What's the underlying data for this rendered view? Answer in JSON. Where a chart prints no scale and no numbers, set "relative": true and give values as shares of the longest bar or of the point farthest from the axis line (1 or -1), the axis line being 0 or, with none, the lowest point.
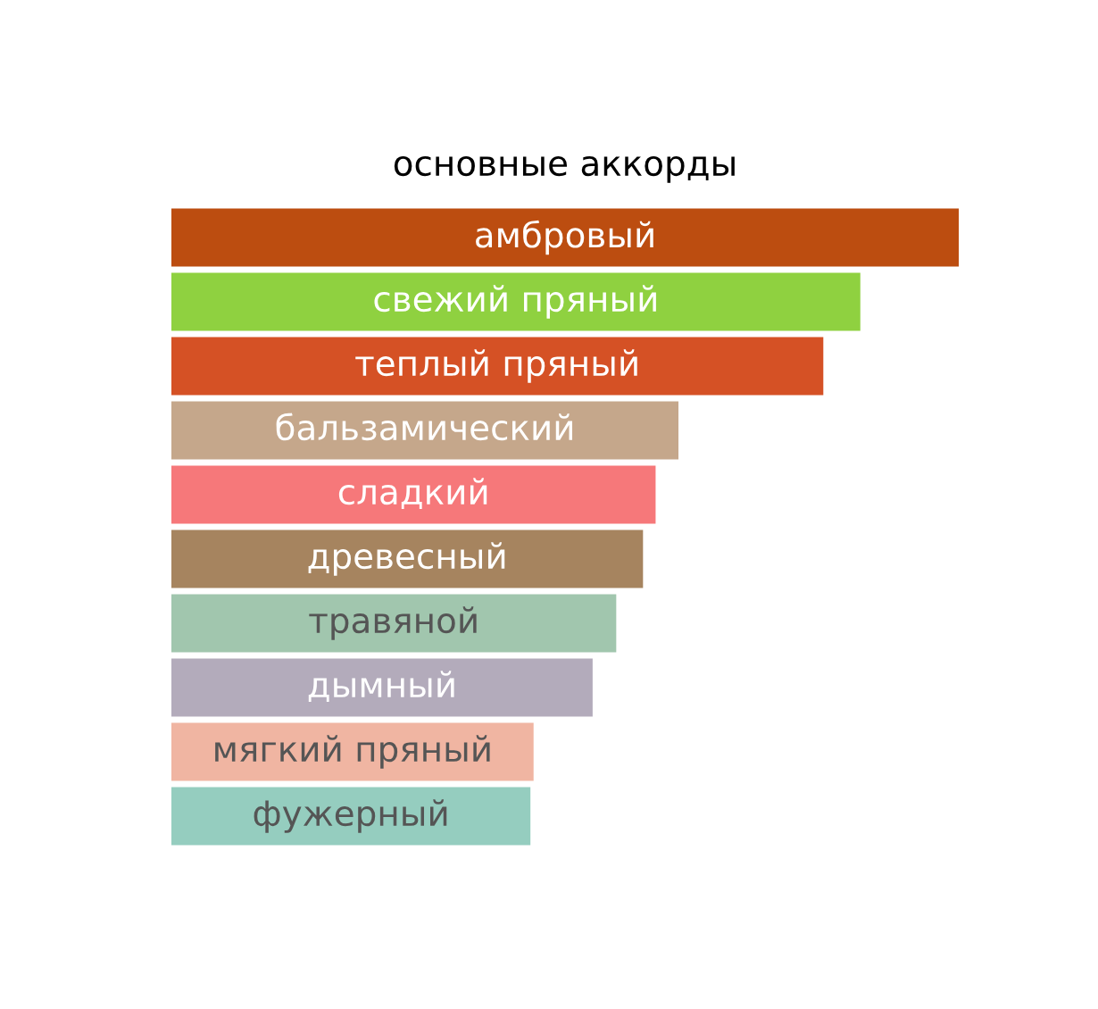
{
  "chart_data": {
    "type": "bar",
    "orientation": "horizontal",
    "relative": true,
    "title": "основные аккорды",
    "categories": [
      "амбровый",
      "свежий пряный",
      "теплый пряный",
      "бальзамический",
      "сладкий",
      "древесный",
      "травяной",
      "дымный",
      "мягкий пряный",
      "фужерный"
    ],
    "values": [
      1,
      0.875,
      0.828,
      0.644,
      0.615,
      0.599,
      0.565,
      0.535,
      0.46,
      0.456
    ],
    "colors": [
      "#bc4d10",
      "#8fd140",
      "#d55125",
      "#c5a78b",
      "#f6787a",
      "#a6845f",
      "#a1c6ae",
      "#b3abbb",
      "#f0b5a2",
      "#95cdbf"
    ],
    "legend": false
  }
}
